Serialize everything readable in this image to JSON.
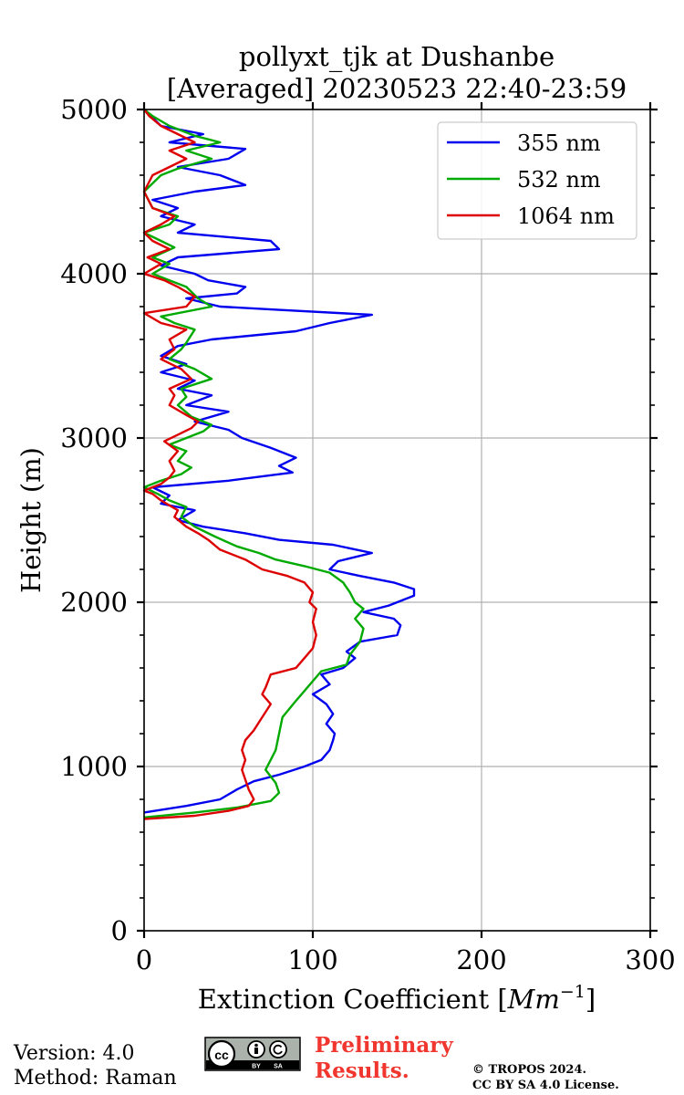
{
  "chart_data": {
    "type": "line",
    "title_lines": [
      "pollyxt_tjk at Dushanbe",
      "[Averaged] 20230523 22:40-23:59"
    ],
    "xlabel_prefix": "Extinction Coefficient [",
    "xlabel_unit": "Mm",
    "xlabel_exp": "−1",
    "xlabel_suffix": "]",
    "ylabel": "Height (m)",
    "xlim": [
      0,
      300
    ],
    "ylim": [
      0,
      5000
    ],
    "xticks": [
      0,
      100,
      200,
      300
    ],
    "yticks": [
      0,
      1000,
      2000,
      3000,
      4000,
      5000
    ],
    "grid": true,
    "legend_position": "top-right",
    "series": [
      {
        "name": "355 nm",
        "color": "#0000ee",
        "points": [
          [
            0,
            720
          ],
          [
            25,
            760
          ],
          [
            45,
            800
          ],
          [
            55,
            860
          ],
          [
            65,
            910
          ],
          [
            80,
            950
          ],
          [
            95,
            1000
          ],
          [
            105,
            1040
          ],
          [
            110,
            1100
          ],
          [
            112,
            1160
          ],
          [
            113,
            1200
          ],
          [
            108,
            1260
          ],
          [
            112,
            1320
          ],
          [
            108,
            1380
          ],
          [
            100,
            1440
          ],
          [
            110,
            1500
          ],
          [
            105,
            1560
          ],
          [
            118,
            1600
          ],
          [
            125,
            1660
          ],
          [
            120,
            1700
          ],
          [
            128,
            1760
          ],
          [
            150,
            1800
          ],
          [
            152,
            1860
          ],
          [
            148,
            1900
          ],
          [
            130,
            1940
          ],
          [
            145,
            1980
          ],
          [
            160,
            2040
          ],
          [
            160,
            2080
          ],
          [
            148,
            2120
          ],
          [
            128,
            2160
          ],
          [
            110,
            2200
          ],
          [
            115,
            2250
          ],
          [
            135,
            2300
          ],
          [
            112,
            2350
          ],
          [
            80,
            2380
          ],
          [
            60,
            2420
          ],
          [
            35,
            2460
          ],
          [
            20,
            2500
          ],
          [
            30,
            2560
          ],
          [
            10,
            2600
          ],
          [
            15,
            2650
          ],
          [
            5,
            2700
          ],
          [
            50,
            2740
          ],
          [
            88,
            2790
          ],
          [
            80,
            2830
          ],
          [
            90,
            2880
          ],
          [
            75,
            2940
          ],
          [
            58,
            3000
          ],
          [
            50,
            3050
          ],
          [
            30,
            3100
          ],
          [
            50,
            3160
          ],
          [
            25,
            3200
          ],
          [
            40,
            3260
          ],
          [
            20,
            3300
          ],
          [
            30,
            3350
          ],
          [
            10,
            3400
          ],
          [
            25,
            3450
          ],
          [
            10,
            3500
          ],
          [
            20,
            3560
          ],
          [
            40,
            3600
          ],
          [
            90,
            3650
          ],
          [
            110,
            3700
          ],
          [
            135,
            3750
          ],
          [
            80,
            3780
          ],
          [
            45,
            3800
          ],
          [
            25,
            3850
          ],
          [
            55,
            3880
          ],
          [
            60,
            3920
          ],
          [
            38,
            3960
          ],
          [
            30,
            4000
          ],
          [
            10,
            4050
          ],
          [
            20,
            4100
          ],
          [
            80,
            4150
          ],
          [
            75,
            4200
          ],
          [
            20,
            4250
          ],
          [
            30,
            4300
          ],
          [
            10,
            4350
          ],
          [
            20,
            4400
          ],
          [
            5,
            4450
          ],
          [
            30,
            4500
          ],
          [
            60,
            4540
          ],
          [
            45,
            4600
          ],
          [
            20,
            4650
          ],
          [
            50,
            4700
          ],
          [
            60,
            4760
          ],
          [
            15,
            4800
          ],
          [
            35,
            4850
          ],
          [
            10,
            4900
          ],
          [
            5,
            4950
          ],
          [
            0,
            5000
          ]
        ]
      },
      {
        "name": "532 nm",
        "color": "#00aa00",
        "points": [
          [
            0,
            690
          ],
          [
            30,
            720
          ],
          [
            55,
            750
          ],
          [
            75,
            790
          ],
          [
            80,
            840
          ],
          [
            78,
            900
          ],
          [
            72,
            980
          ],
          [
            75,
            1040
          ],
          [
            78,
            1100
          ],
          [
            80,
            1200
          ],
          [
            82,
            1300
          ],
          [
            90,
            1400
          ],
          [
            95,
            1460
          ],
          [
            100,
            1520
          ],
          [
            105,
            1580
          ],
          [
            120,
            1620
          ],
          [
            122,
            1680
          ],
          [
            128,
            1760
          ],
          [
            130,
            1840
          ],
          [
            125,
            1900
          ],
          [
            130,
            1960
          ],
          [
            125,
            2000
          ],
          [
            122,
            2060
          ],
          [
            118,
            2120
          ],
          [
            110,
            2180
          ],
          [
            95,
            2220
          ],
          [
            78,
            2260
          ],
          [
            68,
            2300
          ],
          [
            55,
            2340
          ],
          [
            42,
            2400
          ],
          [
            30,
            2460
          ],
          [
            22,
            2520
          ],
          [
            25,
            2580
          ],
          [
            15,
            2620
          ],
          [
            8,
            2660
          ],
          [
            0,
            2700
          ],
          [
            10,
            2740
          ],
          [
            22,
            2780
          ],
          [
            28,
            2820
          ],
          [
            20,
            2860
          ],
          [
            25,
            2920
          ],
          [
            15,
            2960
          ],
          [
            25,
            3000
          ],
          [
            35,
            3040
          ],
          [
            40,
            3080
          ],
          [
            28,
            3130
          ],
          [
            20,
            3200
          ],
          [
            25,
            3250
          ],
          [
            22,
            3300
          ],
          [
            40,
            3360
          ],
          [
            30,
            3420
          ],
          [
            15,
            3480
          ],
          [
            22,
            3540
          ],
          [
            25,
            3580
          ],
          [
            30,
            3660
          ],
          [
            18,
            3700
          ],
          [
            10,
            3740
          ],
          [
            40,
            3800
          ],
          [
            32,
            3850
          ],
          [
            25,
            3920
          ],
          [
            15,
            3960
          ],
          [
            5,
            4000
          ],
          [
            15,
            4060
          ],
          [
            5,
            4100
          ],
          [
            18,
            4160
          ],
          [
            10,
            4200
          ],
          [
            0,
            4250
          ],
          [
            15,
            4300
          ],
          [
            20,
            4350
          ],
          [
            5,
            4400
          ],
          [
            0,
            4500
          ],
          [
            10,
            4600
          ],
          [
            20,
            4640
          ],
          [
            40,
            4700
          ],
          [
            25,
            4750
          ],
          [
            45,
            4800
          ],
          [
            30,
            4840
          ],
          [
            15,
            4900
          ],
          [
            5,
            4960
          ],
          [
            0,
            5000
          ]
        ]
      },
      {
        "name": "1064 nm",
        "color": "#dd0000",
        "points": [
          [
            0,
            680
          ],
          [
            30,
            700
          ],
          [
            50,
            730
          ],
          [
            62,
            760
          ],
          [
            65,
            800
          ],
          [
            62,
            860
          ],
          [
            60,
            920
          ],
          [
            58,
            980
          ],
          [
            60,
            1040
          ],
          [
            58,
            1100
          ],
          [
            60,
            1160
          ],
          [
            65,
            1220
          ],
          [
            70,
            1300
          ],
          [
            75,
            1380
          ],
          [
            70,
            1440
          ],
          [
            72,
            1480
          ],
          [
            75,
            1560
          ],
          [
            90,
            1600
          ],
          [
            95,
            1660
          ],
          [
            100,
            1720
          ],
          [
            102,
            1800
          ],
          [
            100,
            1880
          ],
          [
            102,
            1960
          ],
          [
            98,
            2000
          ],
          [
            100,
            2060
          ],
          [
            95,
            2120
          ],
          [
            85,
            2160
          ],
          [
            70,
            2200
          ],
          [
            60,
            2260
          ],
          [
            45,
            2320
          ],
          [
            38,
            2380
          ],
          [
            32,
            2420
          ],
          [
            25,
            2460
          ],
          [
            18,
            2520
          ],
          [
            20,
            2560
          ],
          [
            10,
            2620
          ],
          [
            5,
            2660
          ],
          [
            0,
            2680
          ],
          [
            10,
            2720
          ],
          [
            15,
            2760
          ],
          [
            18,
            2800
          ],
          [
            15,
            2860
          ],
          [
            20,
            2920
          ],
          [
            12,
            2980
          ],
          [
            20,
            3020
          ],
          [
            28,
            3060
          ],
          [
            32,
            3100
          ],
          [
            25,
            3140
          ],
          [
            15,
            3200
          ],
          [
            18,
            3260
          ],
          [
            15,
            3300
          ],
          [
            28,
            3360
          ],
          [
            22,
            3420
          ],
          [
            10,
            3480
          ],
          [
            18,
            3540
          ],
          [
            15,
            3600
          ],
          [
            25,
            3660
          ],
          [
            10,
            3700
          ],
          [
            0,
            3760
          ],
          [
            25,
            3800
          ],
          [
            30,
            3860
          ],
          [
            20,
            3920
          ],
          [
            12,
            3960
          ],
          [
            0,
            4000
          ],
          [
            10,
            4060
          ],
          [
            2,
            4100
          ],
          [
            15,
            4150
          ],
          [
            5,
            4200
          ],
          [
            0,
            4250
          ],
          [
            10,
            4300
          ],
          [
            18,
            4350
          ],
          [
            5,
            4400
          ],
          [
            0,
            4500
          ],
          [
            5,
            4600
          ],
          [
            15,
            4650
          ],
          [
            25,
            4700
          ],
          [
            15,
            4750
          ],
          [
            30,
            4800
          ],
          [
            20,
            4850
          ],
          [
            10,
            4900
          ],
          [
            3,
            4960
          ],
          [
            0,
            5000
          ]
        ]
      }
    ]
  },
  "footer": {
    "version": "Version: 4.0",
    "method": "Method: Raman",
    "cc_badge": "cc",
    "cc_by": "BY",
    "cc_sa": "SA",
    "preliminary_line1": "Preliminary",
    "preliminary_line2": "Results.",
    "copyright_line1": "© TROPOS 2024.",
    "copyright_line2": "CC BY SA 4.0 License."
  }
}
